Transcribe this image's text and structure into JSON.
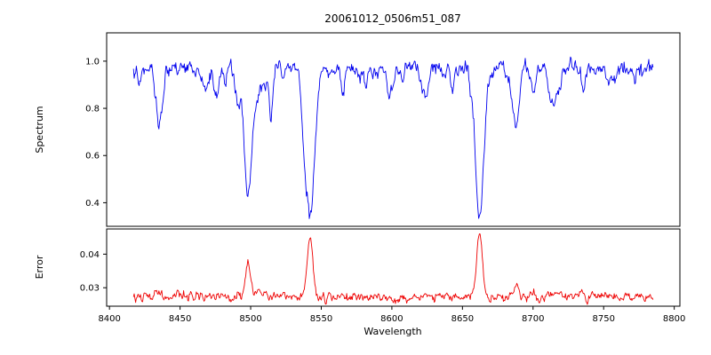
{
  "title": "20061012_0506m51_087",
  "axes": {
    "xlabel": "Wavelength",
    "top_ylabel": "Spectrum",
    "bottom_ylabel": "Error",
    "x_ticks": [
      "8400",
      "8450",
      "8500",
      "8550",
      "8600",
      "8650",
      "8700",
      "8750",
      "8800"
    ],
    "top_y_ticks": [
      "0.4",
      "0.6",
      "0.8",
      "1.0"
    ],
    "bottom_y_ticks": [
      "0.03",
      "0.04"
    ]
  },
  "chart_data": [
    {
      "type": "line",
      "name": "spectrum",
      "ylabel": "Spectrum",
      "color": "#0000ee",
      "x_range": [
        8417,
        8785
      ],
      "xlim": [
        8398,
        8804
      ],
      "ylim": [
        0.3,
        1.12
      ],
      "continuum": 0.97,
      "noise_sigma": 0.015,
      "absorption_lines": [
        {
          "center": 8434,
          "depth": 0.19,
          "width": 1.6
        },
        {
          "center": 8468,
          "depth": 0.1,
          "width": 1.5
        },
        {
          "center": 8498.0,
          "depth": 0.53,
          "width": 2.6
        },
        {
          "center": 8514,
          "depth": 0.13,
          "width": 1.6
        },
        {
          "center": 8542.1,
          "depth": 0.625,
          "width": 3.2
        },
        {
          "center": 8582,
          "depth": 0.09,
          "width": 1.5
        },
        {
          "center": 8598,
          "depth": 0.11,
          "width": 1.5
        },
        {
          "center": 8621,
          "depth": 0.08,
          "width": 1.5
        },
        {
          "center": 8662.1,
          "depth": 0.62,
          "width": 2.9
        },
        {
          "center": 8688,
          "depth": 0.25,
          "width": 1.8
        },
        {
          "center": 8712,
          "depth": 0.07,
          "width": 1.4
        },
        {
          "center": 8736,
          "depth": 0.06,
          "width": 1.4
        },
        {
          "center": 8757,
          "depth": 0.06,
          "width": 1.4
        }
      ],
      "micro_lines": {
        "count": 42,
        "depth_min": 0.02,
        "depth_max": 0.11,
        "width_min": 0.7,
        "width_max": 1.8
      }
    },
    {
      "type": "line",
      "name": "error",
      "ylabel": "Error",
      "color": "#ee0000",
      "x_range": [
        8417,
        8785
      ],
      "xlim": [
        8398,
        8804
      ],
      "ylim": [
        0.0245,
        0.0475
      ],
      "baseline": 0.0272,
      "noise_sigma": 0.0006,
      "peaks": [
        {
          "center": 8434,
          "height": 0.0015,
          "width": 1.6
        },
        {
          "center": 8498.0,
          "height": 0.011,
          "width": 1.8
        },
        {
          "center": 8542.1,
          "height": 0.0185,
          "width": 2.0
        },
        {
          "center": 8662.1,
          "height": 0.019,
          "width": 1.9
        },
        {
          "center": 8688,
          "height": 0.004,
          "width": 1.5
        }
      ]
    }
  ]
}
